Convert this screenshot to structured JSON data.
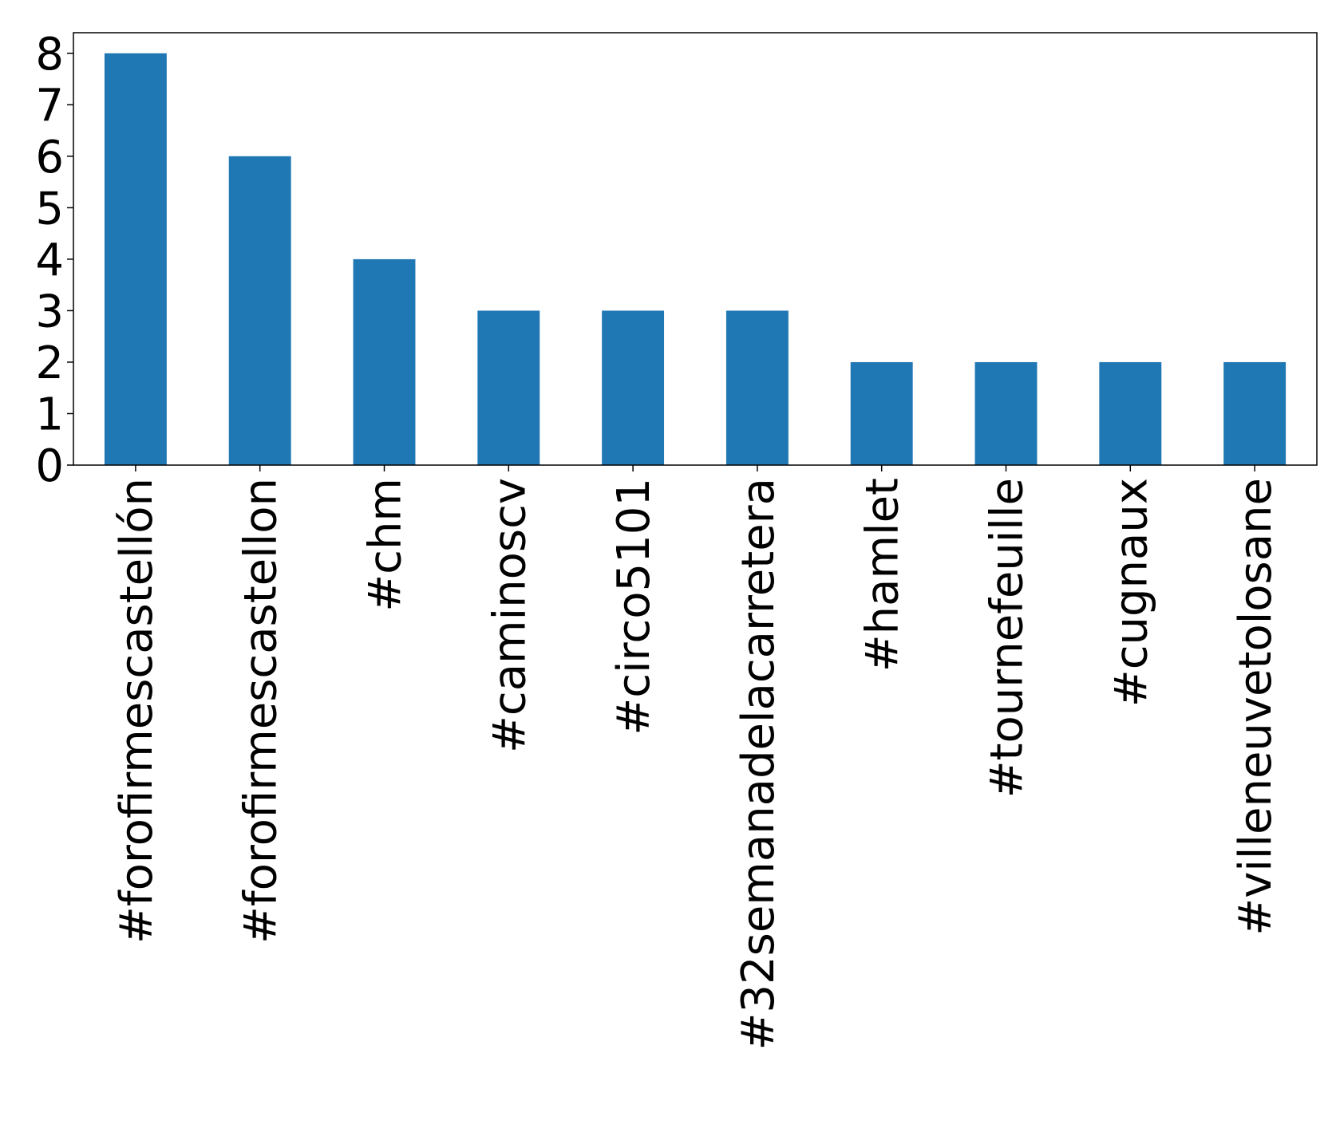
{
  "chart_data": {
    "type": "bar",
    "categories": [
      "#forofirmescastellón",
      "#forofirmescastellon",
      "#chm",
      "#caminoscv",
      "#circo5101",
      "#32semanadelacarretera",
      "#hamlet",
      "#tournefeuille",
      "#cugnaux",
      "#villeneuvetolosane"
    ],
    "values": [
      8,
      6,
      4,
      3,
      3,
      3,
      2,
      2,
      2,
      2
    ],
    "yticks": [
      "0",
      "1",
      "2",
      "3",
      "4",
      "5",
      "6",
      "7",
      "8"
    ],
    "ylim": [
      0,
      8.4
    ],
    "grid": false,
    "legend": "none",
    "bar_color": "#1f77b4"
  }
}
